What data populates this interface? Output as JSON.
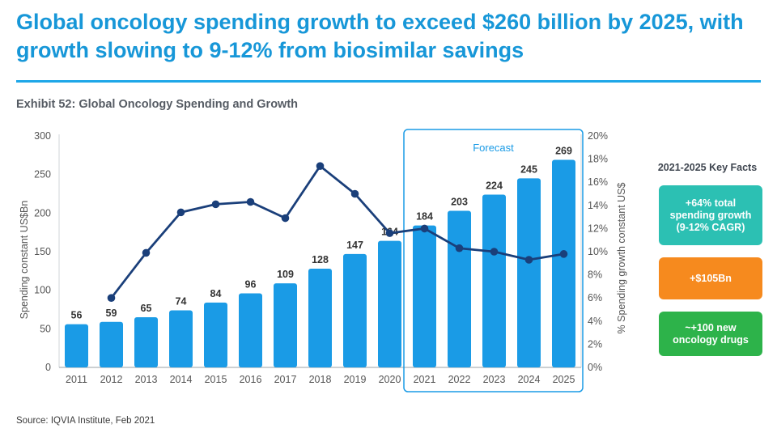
{
  "header": {
    "title": "Global oncology spending growth to exceed $260 billion by 2025, with growth slowing to 9-12% from biosimilar savings",
    "exhibit": "Exhibit 52: Global Oncology Spending and Growth"
  },
  "chart_data": {
    "type": "bar",
    "categories": [
      "2011",
      "2012",
      "2013",
      "2014",
      "2015",
      "2016",
      "2017",
      "2018",
      "2019",
      "2020",
      "2021",
      "2022",
      "2023",
      "2024",
      "2025"
    ],
    "series": [
      {
        "name": "Spending constant US$Bn",
        "type": "bar",
        "axis": "left",
        "values": [
          56,
          59,
          65,
          74,
          84,
          96,
          109,
          128,
          147,
          164,
          184,
          203,
          224,
          245,
          269
        ]
      },
      {
        "name": "% Spending growth constant US$",
        "type": "line",
        "axis": "right",
        "values": [
          null,
          6.0,
          9.9,
          13.4,
          14.1,
          14.3,
          12.9,
          17.4,
          15.0,
          11.6,
          12.0,
          10.3,
          10.0,
          9.3,
          9.8
        ]
      }
    ],
    "ylabel": "Spending constant US$Bn",
    "ylabel_right": "% Spending growth constant US$",
    "ylim": [
      0,
      300
    ],
    "ylim_right": [
      0,
      20
    ],
    "yticks": [
      "0",
      "50",
      "100",
      "150",
      "200",
      "250",
      "300"
    ],
    "yticks_right": [
      "0%",
      "2%",
      "4%",
      "6%",
      "8%",
      "10%",
      "12%",
      "14%",
      "16%",
      "18%",
      "20%"
    ],
    "forecast_label": "Forecast",
    "forecast_start": "2021",
    "colors": {
      "bar": "#1a9be6",
      "line": "#1a3f7a",
      "forecast_box": "#1a9be6",
      "axis": "#d0d4d8"
    }
  },
  "key_facts": {
    "title": "2021-2025 Key Facts",
    "items": [
      {
        "lines": [
          "+64% total",
          "spending growth",
          "(9-12% CAGR)"
        ],
        "color": "#2cc0b3"
      },
      {
        "lines": [
          "+$105Bn"
        ],
        "color": "#f68a1e"
      },
      {
        "lines": [
          "~+100 new",
          "oncology drugs"
        ],
        "color": "#2db34a"
      }
    ]
  },
  "footer": {
    "source": "Source: IQVIA Institute, Feb 2021"
  }
}
